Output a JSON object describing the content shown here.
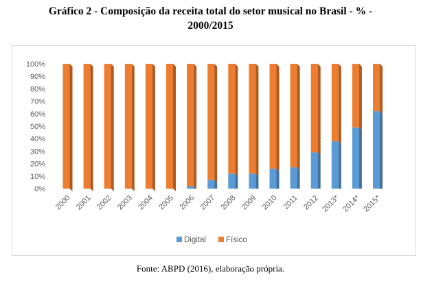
{
  "header": {
    "title_line1": "Gráfico 2 - Composição da receita total do setor musical no Brasil - % -",
    "title_line2": "2000/2015"
  },
  "footer": {
    "source": "Fonte: ABPD (2016), elaboração própria."
  },
  "colors": {
    "digital": "#5b9bd5",
    "fisico": "#ed7d31",
    "digital_side": "#41719c",
    "fisico_side": "#ae5a21"
  },
  "chart_data": {
    "type": "bar",
    "stacked": true,
    "percent": true,
    "categories": [
      "2000",
      "2001",
      "2002",
      "2003",
      "2004",
      "2005",
      "2006",
      "2007",
      "2008",
      "2009",
      "2010",
      "2011",
      "2012",
      "2013*",
      "2014*",
      "2015*"
    ],
    "series": [
      {
        "name": "Digital",
        "values": [
          0,
          0,
          0,
          0,
          0,
          0,
          2,
          7,
          12,
          12,
          16,
          17,
          29,
          38,
          49,
          62
        ]
      },
      {
        "name": "Físico",
        "values": [
          100,
          100,
          100,
          100,
          100,
          100,
          98,
          93,
          88,
          88,
          84,
          83,
          71,
          62,
          51,
          38
        ]
      }
    ],
    "y_ticks": [
      "0%",
      "10%",
      "20%",
      "30%",
      "40%",
      "50%",
      "60%",
      "70%",
      "80%",
      "90%",
      "100%"
    ],
    "ylim": [
      0,
      100
    ],
    "grid": false,
    "legend_position": "bottom"
  }
}
